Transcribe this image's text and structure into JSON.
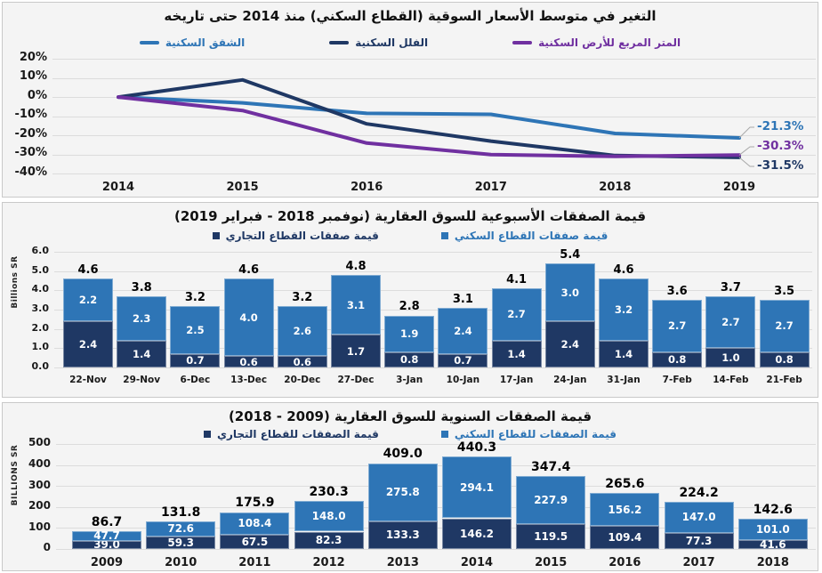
{
  "colors": {
    "residential_blue": "#2E75B6",
    "commercial_navy": "#1F3864",
    "land_purple": "#7030A0",
    "panel_bg": "#F4F4F4",
    "gridline": "#DCDCDC"
  },
  "chart_data": [
    {
      "type": "line",
      "title": "التغير في متوسط الأسعار السوقية (القطاع السكني) منذ 2014 حتى تاريخه",
      "x": [
        "2014",
        "2015",
        "2016",
        "2017",
        "2018",
        "2019"
      ],
      "ylim": [
        -40,
        20
      ],
      "ytick_step": 10,
      "ytick_suffix": "%",
      "grid": true,
      "legend_position": "top",
      "series": [
        {
          "name": "الشقق السكنية",
          "color": "#2E75B6",
          "values": [
            0,
            -3,
            -8.5,
            -9,
            -19,
            -21.3
          ],
          "end_label": "-21.3%"
        },
        {
          "name": "الفلل السكنية",
          "color": "#1F3864",
          "values": [
            0,
            9,
            -14,
            -23,
            -30.5,
            -31.5
          ],
          "end_label": "-31.5%"
        },
        {
          "name": "المتر المربع للأرض السكنية",
          "color": "#7030A0",
          "values": [
            0,
            -7,
            -24,
            -30,
            -31,
            -30.3
          ],
          "end_label": "-30.3%"
        }
      ]
    },
    {
      "type": "bar",
      "stacked": true,
      "title": "قيمة الصفقات الأسبوعية للسوق العقارية (نوفمبر 2018 - فبراير 2019)",
      "ylabel": "Billions SR",
      "ylim": [
        0,
        6
      ],
      "ytick_step": 1,
      "grid": true,
      "legend_position": "top",
      "categories": [
        "22-Nov",
        "29-Nov",
        "6-Dec",
        "13-Dec",
        "20-Dec",
        "27-Dec",
        "3-Jan",
        "10-Jan",
        "17-Jan",
        "24-Jan",
        "31-Jan",
        "7-Feb",
        "14-Feb",
        "21-Feb"
      ],
      "series": [
        {
          "name": "قيمة صفقات القطاع التجاري",
          "color": "#1F3864",
          "values": [
            2.4,
            1.4,
            0.7,
            0.6,
            0.6,
            1.7,
            0.8,
            0.7,
            1.4,
            2.4,
            1.4,
            0.8,
            1.0,
            0.8
          ]
        },
        {
          "name": "قيمة صفقات القطاع السكني",
          "color": "#2E75B6",
          "values": [
            2.2,
            2.3,
            2.5,
            4.0,
            2.6,
            3.1,
            1.9,
            2.4,
            2.7,
            3.0,
            3.2,
            2.7,
            2.7,
            2.7
          ]
        }
      ],
      "totals": [
        4.6,
        3.8,
        3.2,
        4.6,
        3.2,
        4.8,
        2.8,
        3.1,
        4.1,
        5.4,
        4.6,
        3.6,
        3.7,
        3.5
      ]
    },
    {
      "type": "bar",
      "stacked": true,
      "title": "قيمة الصفقات السنوية للسوق العقارية (2009 - 2018)",
      "ylabel": "BILLIONS SR",
      "ylim": [
        0,
        500
      ],
      "ytick_step": 100,
      "grid": true,
      "legend_position": "top",
      "categories": [
        "2009",
        "2010",
        "2011",
        "2012",
        "2013",
        "2014",
        "2015",
        "2016",
        "2017",
        "2018"
      ],
      "series": [
        {
          "name": "قيمة الصفقات للقطاع التجاري",
          "color": "#1F3864",
          "values": [
            39.0,
            59.3,
            67.5,
            82.3,
            133.3,
            146.2,
            119.5,
            109.4,
            77.3,
            41.6
          ]
        },
        {
          "name": "قيمة الصفقات للقطاع السكني",
          "color": "#2E75B6",
          "values": [
            47.7,
            72.6,
            108.4,
            148.0,
            275.8,
            294.1,
            227.9,
            156.2,
            147.0,
            101.0
          ]
        }
      ],
      "totals": [
        86.7,
        131.8,
        175.9,
        230.3,
        409.0,
        440.3,
        347.4,
        265.6,
        224.2,
        142.6
      ]
    }
  ]
}
